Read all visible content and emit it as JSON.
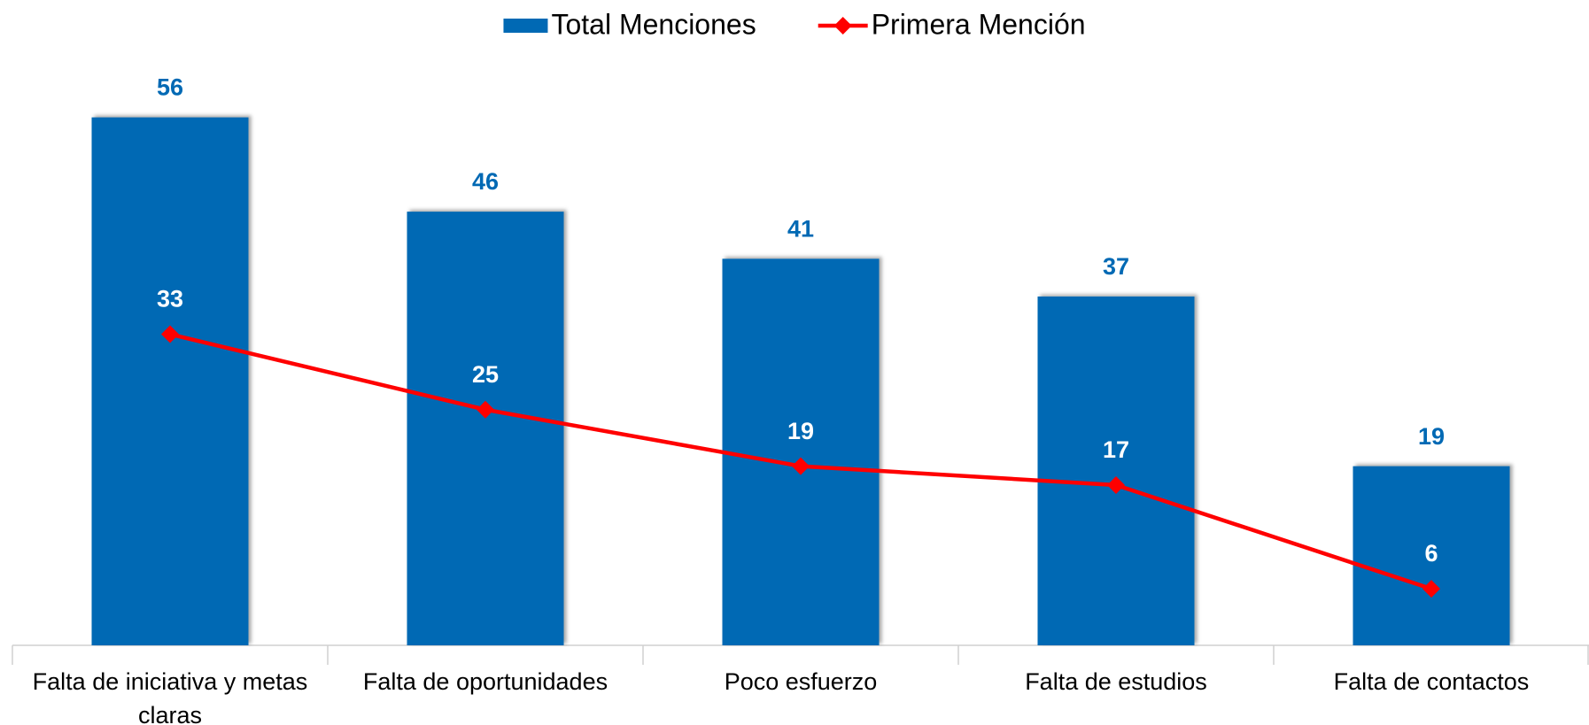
{
  "chart_data": {
    "type": "bar-line",
    "categories": [
      "Falta de iniciativa y metas claras",
      "Falta de oportunidades",
      "Poco esfuerzo",
      "Falta de estudios",
      "Falta de contactos"
    ],
    "series": [
      {
        "name": "Total Menciones",
        "type": "bar",
        "color": "#0069b4",
        "values": [
          56,
          46,
          41,
          37,
          19
        ]
      },
      {
        "name": "Primera Mención",
        "type": "line",
        "color": "#ff0000",
        "values": [
          33,
          25,
          19,
          17,
          6
        ]
      }
    ],
    "ylim": [
      0,
      60
    ],
    "legend": "top"
  }
}
